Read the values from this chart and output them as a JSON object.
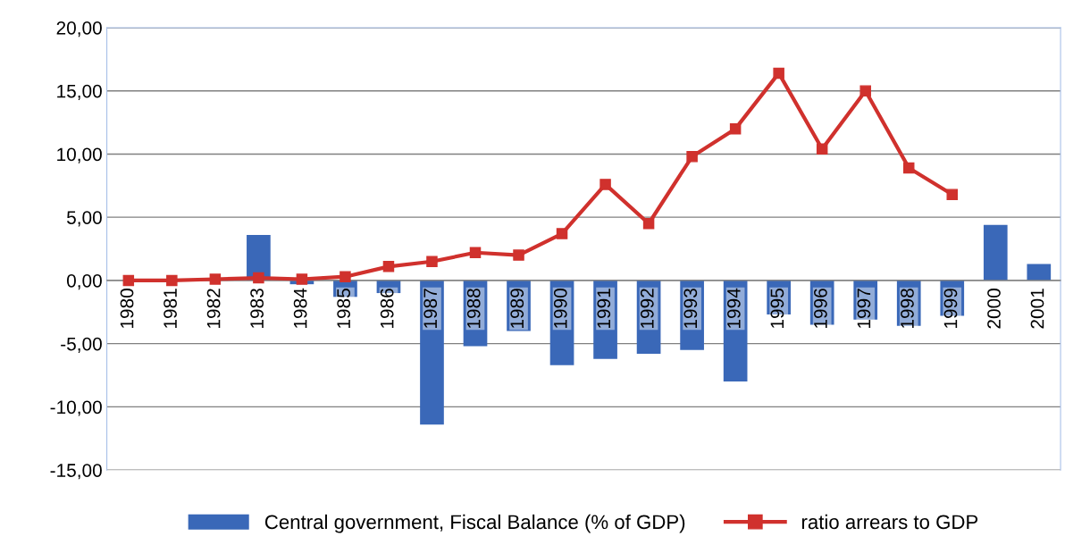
{
  "chart_data": {
    "type": "bar",
    "categories": [
      "1980",
      "1981",
      "1982",
      "1983",
      "1984",
      "1985",
      "1986",
      "1987",
      "1988",
      "1989",
      "1990",
      "1991",
      "1992",
      "1993",
      "1994",
      "1995",
      "1996",
      "1997",
      "1998",
      "1999",
      "2000",
      "2001"
    ],
    "series": [
      {
        "name": "Central government, Fiscal Balance (% of GDP)",
        "type": "bar",
        "color": "#3a68b8",
        "values": [
          null,
          0.0,
          0.0,
          3.6,
          -0.3,
          -1.3,
          -1.0,
          -11.4,
          -5.2,
          -4.0,
          -6.7,
          -6.2,
          -5.8,
          -5.5,
          -8.0,
          -2.7,
          -3.5,
          -3.1,
          -3.6,
          -2.8,
          4.4,
          1.3
        ]
      },
      {
        "name": "ratio arrears to GDP",
        "type": "line",
        "color": "#d0312d",
        "marker": "square",
        "line_style": "solid",
        "values": [
          0.0,
          0.0,
          0.1,
          0.2,
          0.1,
          0.3,
          1.1,
          1.5,
          2.2,
          2.0,
          3.7,
          7.6,
          4.5,
          9.8,
          12.0,
          16.4,
          10.4,
          15.0,
          8.9,
          6.8,
          null,
          null
        ]
      }
    ],
    "ylim": [
      -15,
      20
    ],
    "yticks": [
      {
        "value": -15,
        "label": "-15,00"
      },
      {
        "value": -10,
        "label": "-10,00"
      },
      {
        "value": -5,
        "label": "-5,00"
      },
      {
        "value": 0,
        "label": "0,00"
      },
      {
        "value": 5,
        "label": "5,00"
      },
      {
        "value": 10,
        "label": "10,00"
      },
      {
        "value": 15,
        "label": "15,00"
      },
      {
        "value": 20,
        "label": "20,00"
      }
    ],
    "grid": "y",
    "legend": "bottom"
  }
}
